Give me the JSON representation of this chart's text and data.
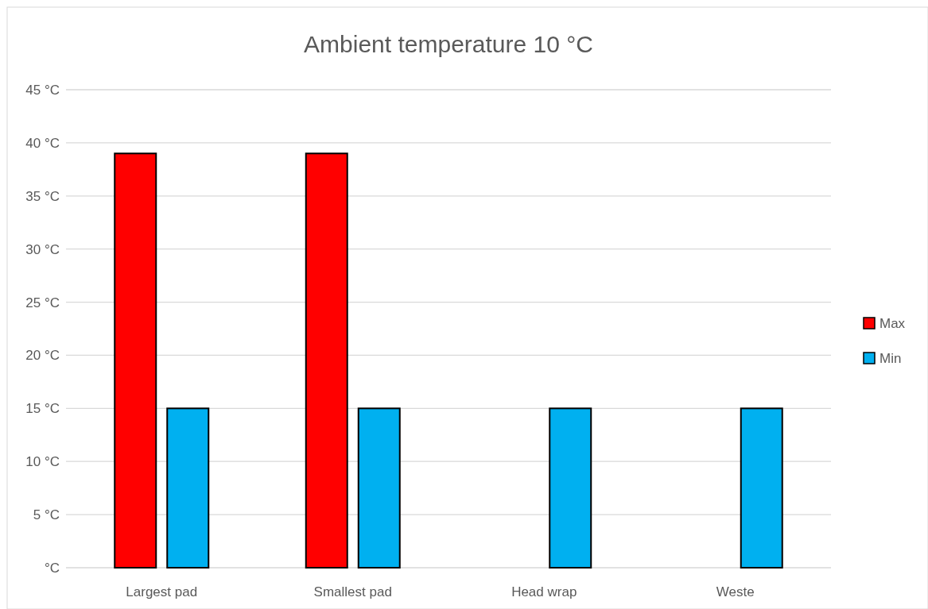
{
  "chart_data": {
    "type": "bar",
    "title": "Ambient temperature 10 °C",
    "categories": [
      "Largest pad",
      "Smallest pad",
      "Head wrap",
      "Weste"
    ],
    "series": [
      {
        "name": "Max",
        "color": "#ff0000",
        "values": [
          39,
          39,
          null,
          null
        ]
      },
      {
        "name": "Min",
        "color": "#00b0f0",
        "values": [
          15,
          15,
          15,
          15
        ]
      }
    ],
    "ylim": [
      0,
      45
    ],
    "yticks": [
      {
        "value": 0,
        "label": "°C"
      },
      {
        "value": 5,
        "label": "5 °C"
      },
      {
        "value": 10,
        "label": "10 °C"
      },
      {
        "value": 15,
        "label": "15 °C"
      },
      {
        "value": 20,
        "label": "20 °C"
      },
      {
        "value": 25,
        "label": "25 °C"
      },
      {
        "value": 30,
        "label": "30 °C"
      },
      {
        "value": 35,
        "label": "35 °C"
      },
      {
        "value": 40,
        "label": "40 °C"
      },
      {
        "value": 45,
        "label": "45 °C"
      }
    ],
    "grid": "y",
    "legend": "right"
  }
}
